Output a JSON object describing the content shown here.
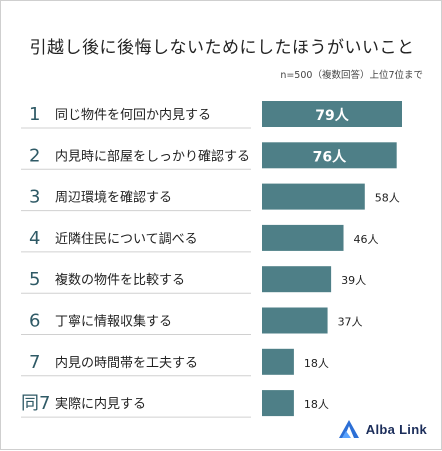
{
  "title": "引越し後に後悔しないためにしたほうがいいこと",
  "note": "n=500（複数回答）上位7位まで",
  "brand": "Alba Link",
  "colors": {
    "bar": "#4e7f87",
    "rank": "#2f5a66",
    "text": "#222222",
    "divider": "#d0d0d0"
  },
  "chart_data": {
    "type": "bar",
    "orientation": "horizontal",
    "unit": "人",
    "xlim": [
      0,
      79
    ],
    "rows": [
      {
        "rank": "1",
        "label": "同じ物件を何回か内見する",
        "value": 79,
        "value_label": "79人",
        "label_inside": true
      },
      {
        "rank": "2",
        "label": "内見時に部屋をしっかり確認する",
        "value": 76,
        "value_label": "76人",
        "label_inside": true
      },
      {
        "rank": "3",
        "label": "周辺環境を確認する",
        "value": 58,
        "value_label": "58人",
        "label_inside": false
      },
      {
        "rank": "4",
        "label": "近隣住民について調べる",
        "value": 46,
        "value_label": "46人",
        "label_inside": false
      },
      {
        "rank": "5",
        "label": "複数の物件を比較する",
        "value": 39,
        "value_label": "39人",
        "label_inside": false
      },
      {
        "rank": "6",
        "label": "丁寧に情報収集する",
        "value": 37,
        "value_label": "37人",
        "label_inside": false
      },
      {
        "rank": "7",
        "label": "内見の時間帯を工夫する",
        "value": 18,
        "value_label": "18人",
        "label_inside": false
      },
      {
        "rank": "同7",
        "label": "実際に内見する",
        "value": 18,
        "value_label": "18人",
        "label_inside": false
      }
    ]
  }
}
